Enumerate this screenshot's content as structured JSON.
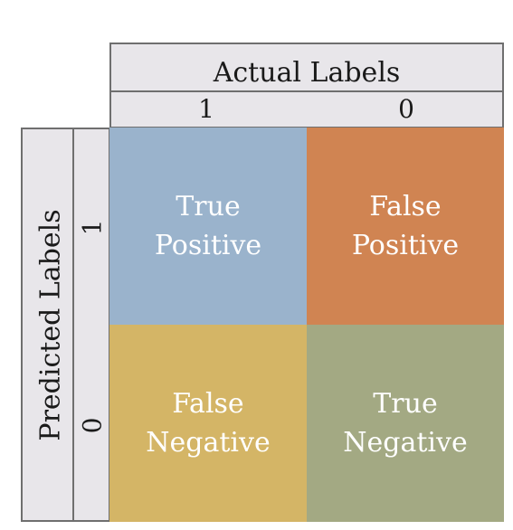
{
  "actual_axis": {
    "title": "Actual Labels",
    "tick_1": "1",
    "tick_0": "0"
  },
  "predicted_axis": {
    "title": "Predicted Labels",
    "tick_1": "1",
    "tick_0": "0"
  },
  "cells": {
    "tp": {
      "line1": "True",
      "line2": "Positive",
      "color": "#9ab3cc"
    },
    "fp": {
      "line1": "False",
      "line2": "Positive",
      "color": "#d08452"
    },
    "fn": {
      "line1": "False",
      "line2": "Negative",
      "color": "#d4b566"
    },
    "tn": {
      "line1": "True",
      "line2": "Negative",
      "color": "#a3a983"
    }
  }
}
